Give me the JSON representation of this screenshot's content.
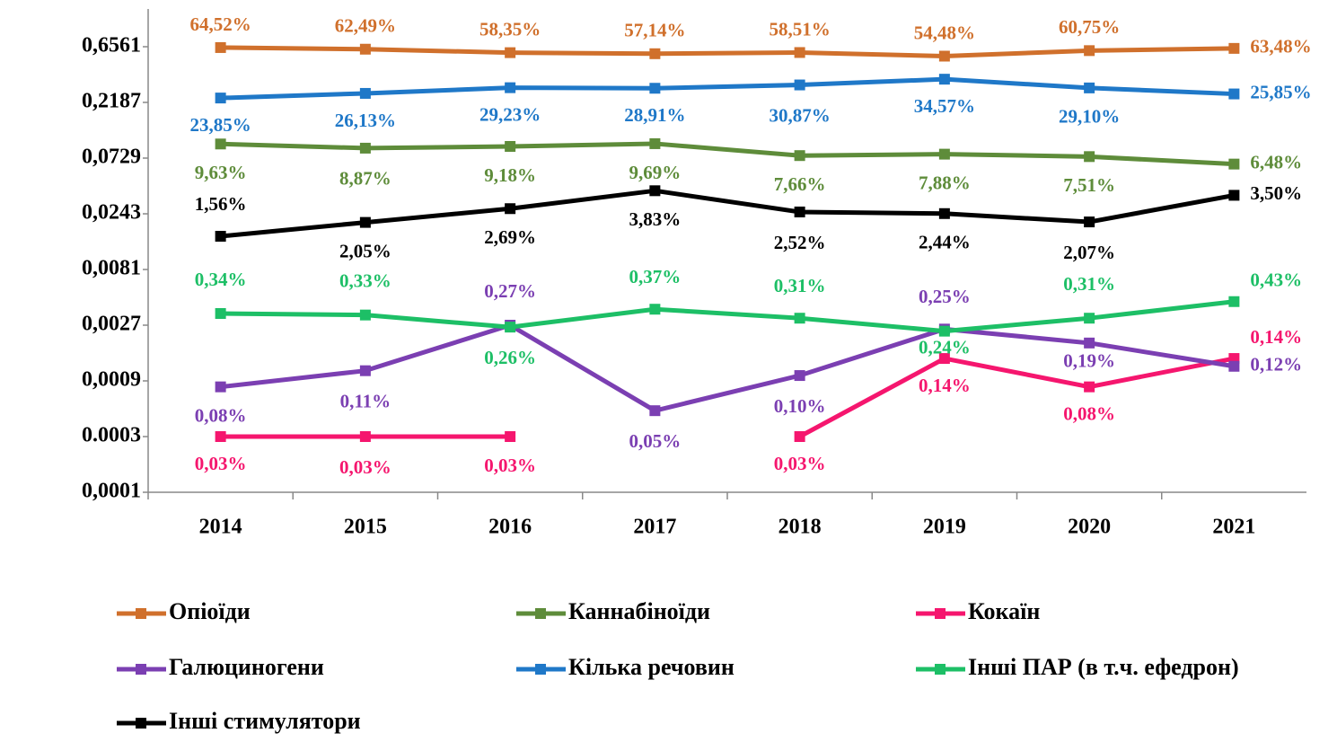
{
  "chart_data": {
    "type": "line",
    "log_scale": true,
    "categories": [
      "2014",
      "2015",
      "2016",
      "2017",
      "2018",
      "2019",
      "2020",
      "2021"
    ],
    "ylim": [
      0.0001,
      0.6561
    ],
    "yticks": [
      {
        "value": 0.0001,
        "label": "0,0001"
      },
      {
        "value": 0.0003,
        "label": "0.0003"
      },
      {
        "value": 0.0009,
        "label": "0,0009"
      },
      {
        "value": 0.0027,
        "label": "0,0027"
      },
      {
        "value": 0.0081,
        "label": "0,0081"
      },
      {
        "value": 0.0243,
        "label": "0,0243"
      },
      {
        "value": 0.0729,
        "label": "0,0729"
      },
      {
        "value": 0.2187,
        "label": "0,2187"
      },
      {
        "value": 0.6561,
        "label": "0,6561"
      }
    ],
    "series": [
      {
        "name": "Опіоїди",
        "color": "#d0702c",
        "values": [
          0.6452,
          0.6249,
          0.5835,
          0.5714,
          0.5851,
          0.5448,
          0.6075,
          0.6348
        ],
        "value_labels": [
          "64,52%",
          "62,49%",
          "58,35%",
          "57,14%",
          "58,51%",
          "54,48%",
          "60,75%",
          "63,48%"
        ]
      },
      {
        "name": "Каннабіноїди",
        "color": "#5e8c3a",
        "values": [
          0.0963,
          0.0887,
          0.0918,
          0.0969,
          0.0766,
          0.0788,
          0.0751,
          0.0648
        ],
        "value_labels": [
          "9,63%",
          "8,87%",
          "9,18%",
          "9,69%",
          "7,66%",
          "7,88%",
          "7,51%",
          "6,48%"
        ]
      },
      {
        "name": "Кокаїн",
        "color": "#f5166e",
        "values": [
          0.0003,
          0.0003,
          0.0003,
          null,
          0.0003,
          0.0014,
          0.0008,
          0.0014
        ],
        "value_labels": [
          "0,03%",
          "0,03%",
          "0,03%",
          null,
          "0,03%",
          "0,14%",
          "0,08%",
          "0,14%"
        ]
      },
      {
        "name": "Галюциногени",
        "color": "#7b3fb2",
        "values": [
          0.0008,
          0.0011,
          0.0027,
          0.0005,
          0.001,
          0.0025,
          0.0019,
          0.0012
        ],
        "value_labels": [
          "0,08%",
          "0,11%",
          "0,27%",
          "0,05%",
          "0,10%",
          "0,25%",
          "0,19%",
          "0,12%"
        ]
      },
      {
        "name": "Кілька речовин",
        "color": "#1f78c8",
        "values": [
          0.2385,
          0.2613,
          0.2923,
          0.2891,
          0.3087,
          0.3457,
          0.291,
          0.2585
        ],
        "value_labels": [
          "23,85%",
          "26,13%",
          "29,23%",
          "28,91%",
          "30,87%",
          "34,57%",
          "29,10%",
          "25,85%"
        ]
      },
      {
        "name": "Інші ПАР (в т.ч. ефедрон)",
        "color": "#1dbf66",
        "values": [
          0.0034,
          0.0033,
          0.0026,
          0.0037,
          0.0031,
          0.0024,
          0.0031,
          0.0043
        ],
        "value_labels": [
          "0,34%",
          "0,33%",
          "0,26%",
          "0,37%",
          "0,31%",
          "0,24%",
          "0,31%",
          "0,43%"
        ]
      },
      {
        "name": "Інші стимулятори",
        "color": "#000000",
        "values": [
          0.0156,
          0.0205,
          0.0269,
          0.0383,
          0.0252,
          0.0244,
          0.0207,
          0.035
        ],
        "value_labels": [
          "1,56%",
          "2,05%",
          "2,69%",
          "3,83%",
          "2,52%",
          "2,44%",
          "2,07%",
          "3,50%"
        ]
      }
    ]
  }
}
